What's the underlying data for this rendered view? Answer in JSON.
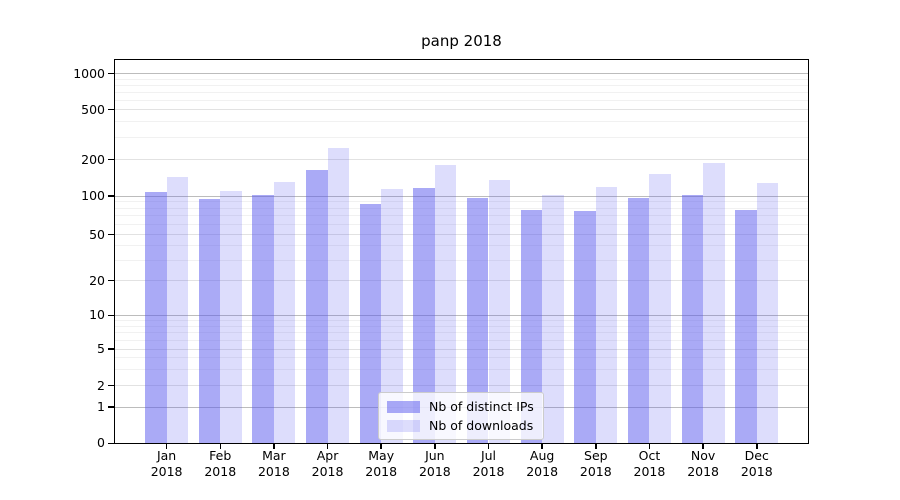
{
  "title": "panp 2018",
  "chart_data": {
    "type": "bar",
    "title": "panp 2018",
    "categories": [
      "Jan 2018",
      "Feb 2018",
      "Mar 2018",
      "Apr 2018",
      "May 2018",
      "Jun 2018",
      "Jul 2018",
      "Aug 2018",
      "Sep 2018",
      "Oct 2018",
      "Nov 2018",
      "Dec 2018"
    ],
    "series": [
      {
        "name": "Nb of distinct IPs",
        "color": "rgba(85,85,238,0.5)",
        "values": [
          108,
          95,
          101,
          165,
          87,
          116,
          96,
          78,
          77,
          96,
          101,
          78
        ]
      },
      {
        "name": "Nb of downloads",
        "color": "rgba(85,85,238,0.2)",
        "values": [
          144,
          110,
          130,
          247,
          114,
          180,
          137,
          102,
          119,
          152,
          189,
          127
        ]
      }
    ],
    "xlabel": "",
    "ylabel": "",
    "y_scale": "symlog",
    "y_ticks": [
      0,
      1,
      2,
      5,
      10,
      20,
      50,
      100,
      200,
      500,
      1000
    ],
    "ylim": [
      0,
      1300
    ],
    "grid": true,
    "legend_position": "lower center"
  }
}
